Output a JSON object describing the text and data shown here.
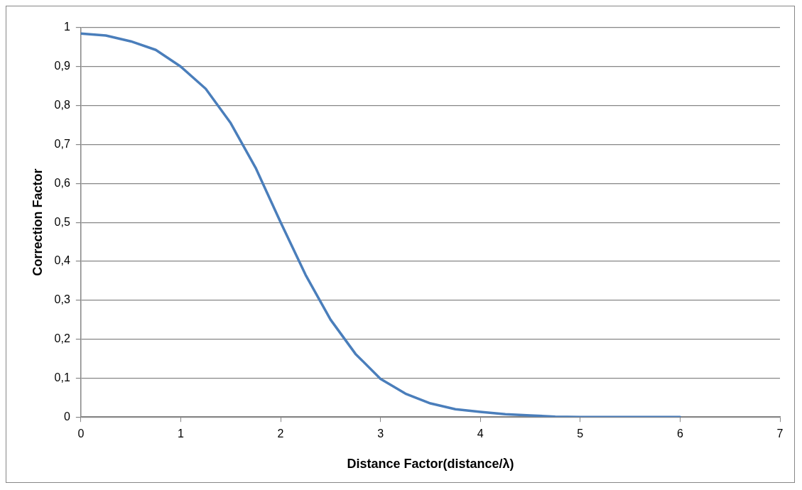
{
  "chart_data": {
    "type": "line",
    "xlabel": "Distance Factor(distance/λ)",
    "ylabel": "Correction Factor",
    "x": [
      0,
      0.25,
      0.5,
      0.75,
      1,
      1.25,
      1.5,
      1.75,
      2,
      2.25,
      2.5,
      2.75,
      3,
      3.25,
      3.5,
      3.75,
      4,
      4.25,
      4.5,
      4.75,
      5,
      5.25,
      5.5,
      5.75,
      6
    ],
    "series": [
      {
        "color": "#4a7ebb",
        "values": [
          0.985,
          0.98,
          0.965,
          0.943,
          0.9,
          0.843,
          0.755,
          0.64,
          0.5,
          0.365,
          0.25,
          0.162,
          0.098,
          0.06,
          0.035,
          0.02,
          0.013,
          0.007,
          0.004,
          0.001,
          0,
          0,
          0,
          0,
          0
        ]
      }
    ],
    "xlim": [
      0,
      7
    ],
    "xticks": [
      0,
      1,
      2,
      3,
      4,
      5,
      6,
      7
    ],
    "ylim": [
      0,
      1
    ],
    "yticks": [
      0,
      {
        "value": 0.1,
        "label": "0,1"
      },
      {
        "value": 0.2,
        "label": "0,2"
      },
      {
        "value": 0.3,
        "label": "0,3"
      },
      {
        "value": 0.4,
        "label": "0,4"
      },
      {
        "value": 0.5,
        "label": "0,5"
      },
      {
        "value": 0.6,
        "label": "0,6"
      },
      {
        "value": 0.7,
        "label": "0,7"
      },
      {
        "value": 0.8,
        "label": "0,8"
      },
      {
        "value": 0.9,
        "label": "0,9"
      },
      1
    ],
    "grid": "y",
    "legend": false,
    "marker": "none",
    "line_style": "solid"
  }
}
